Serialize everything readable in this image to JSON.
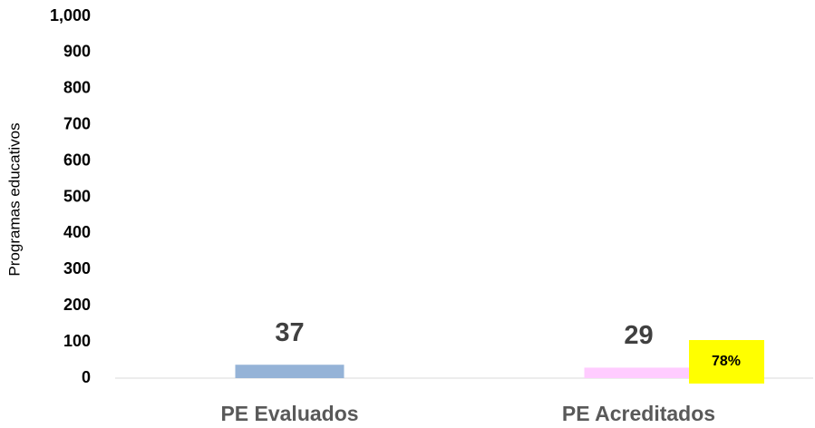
{
  "chart_data": {
    "type": "bar",
    "y_label": "Programas educativos",
    "categories": [
      "PE Evaluados",
      "PE Acreditados"
    ],
    "values": [
      37,
      29
    ],
    "colors": [
      "#95b3d7",
      "#ffccff"
    ],
    "ylim": [
      0,
      1000
    ],
    "yticks": [
      0,
      100,
      200,
      300,
      400,
      500,
      600,
      700,
      800,
      900,
      {
        "value": 1000,
        "label": "1,000"
      }
    ],
    "grid": false,
    "annotation": "78%",
    "annotation_color": "#ffff00"
  }
}
